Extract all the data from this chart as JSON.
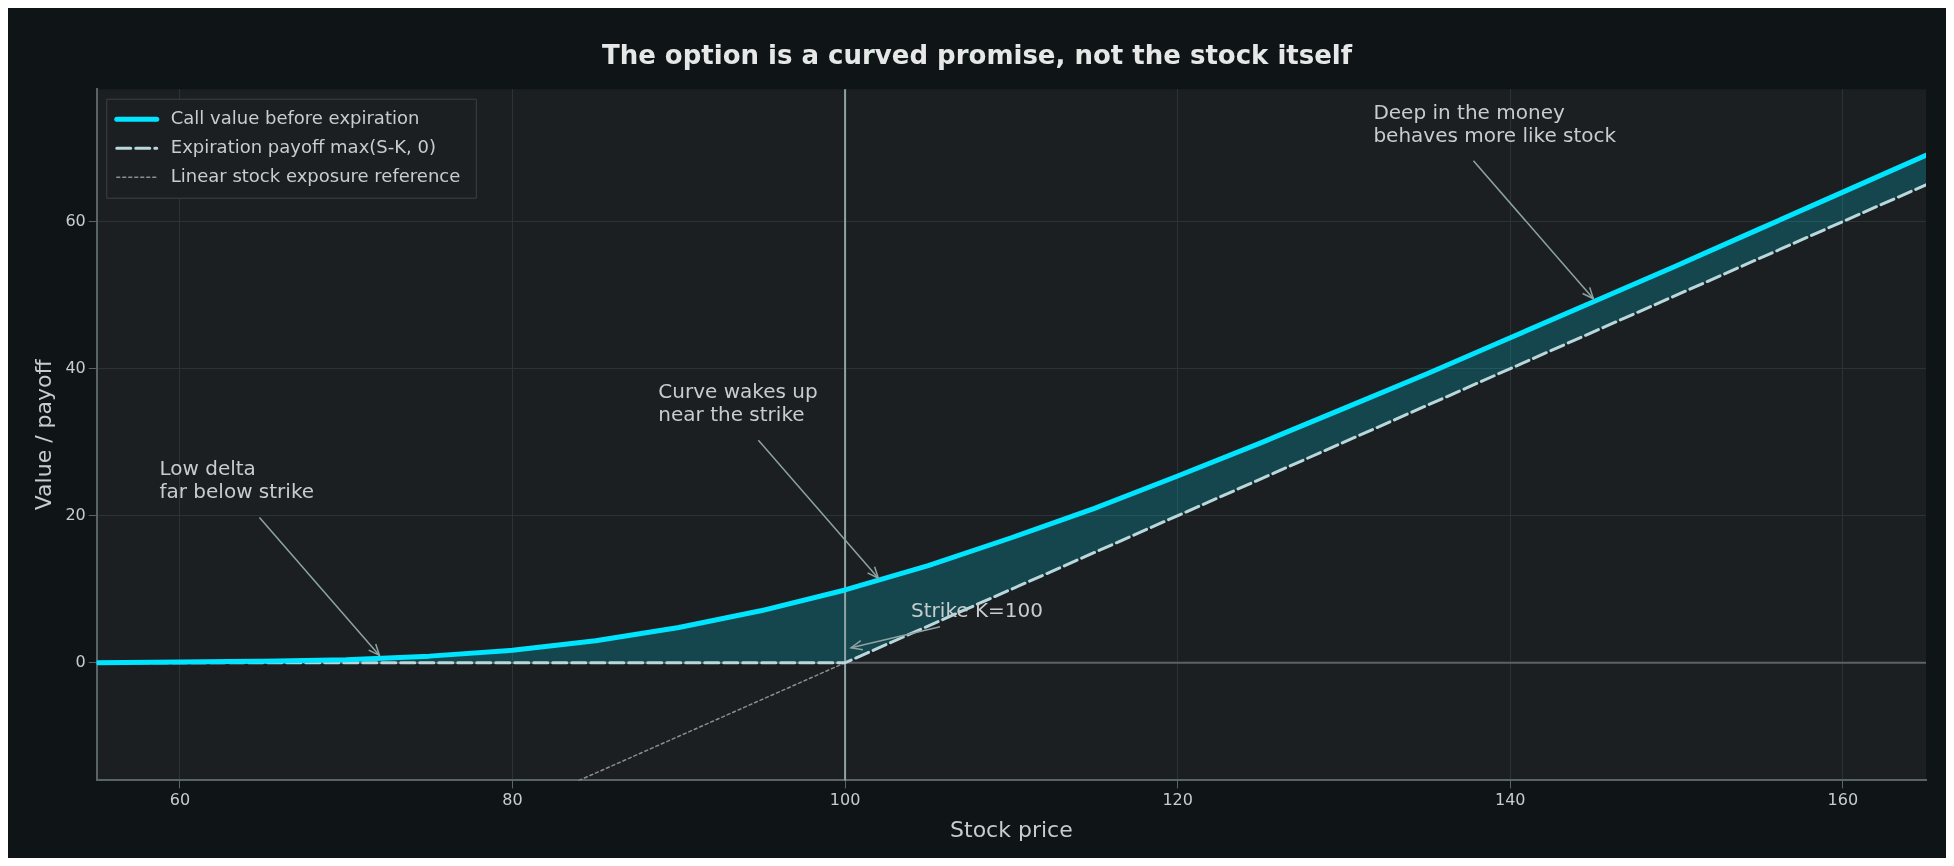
{
  "chart_data": {
    "type": "line",
    "title": "The option is a curved promise, not the stock itself",
    "xlabel": "Stock price",
    "ylabel": "Value / payoff",
    "xlim": [
      55,
      165
    ],
    "xticks": [
      60,
      80,
      100,
      120,
      140,
      160
    ],
    "ylim": [
      -16,
      78
    ],
    "yticks": [
      0,
      20,
      40,
      60
    ],
    "grid": true,
    "legend": "top left",
    "series": [
      {
        "name": "Call value before expiration",
        "color": "#00e5ff",
        "line_style": "solid",
        "x": [
          55,
          60,
          65,
          70,
          75,
          80,
          85,
          90,
          95,
          100,
          105,
          110,
          115,
          120,
          125,
          130,
          135,
          140,
          145,
          150,
          155,
          160,
          165
        ],
        "values": [
          0.0,
          0.1,
          0.2,
          0.4,
          0.9,
          1.7,
          3.0,
          4.8,
          7.1,
          9.9,
          13.2,
          17.0,
          21.0,
          25.4,
          29.9,
          34.6,
          39.3,
          44.2,
          49.1,
          54.0,
          59.0,
          64.0,
          69.0
        ],
        "lower": [
          0,
          0,
          0,
          0,
          0,
          0,
          0,
          0,
          0,
          0,
          5,
          10,
          15,
          20,
          25,
          30,
          35,
          40,
          45,
          50,
          55,
          60,
          65
        ],
        "upper": [
          0.0,
          0.1,
          0.2,
          0.4,
          0.9,
          1.7,
          3.0,
          4.8,
          7.1,
          9.9,
          13.2,
          17.0,
          21.0,
          25.4,
          29.9,
          34.6,
          39.3,
          44.2,
          49.1,
          54.0,
          59.0,
          64.0,
          69.0
        ]
      },
      {
        "name": "Expiration payoff max(S-K, 0)",
        "color": "#b8d8dc",
        "line_style": "dashed",
        "x": [
          55,
          100,
          165
        ],
        "values": [
          0,
          0,
          65
        ]
      },
      {
        "name": "Linear stock exposure reference",
        "color": "#8c8c8c",
        "line_style": "dotted",
        "x": [
          84,
          100
        ],
        "values": [
          -16,
          0
        ]
      }
    ],
    "ref_lines": [
      {
        "axis": "x",
        "value": 100,
        "label": "Strike K=100",
        "color": "#8fa3a3"
      },
      {
        "axis": "y",
        "value": 0,
        "color": "#5a6366"
      }
    ],
    "annotations": [
      {
        "text": "Low delta\nfar below strike",
        "x": 72,
        "y": 1
      },
      {
        "text": "Curve wakes up\nnear the strike",
        "x": 102,
        "y": 11.5
      },
      {
        "text": "Deep in the money\nbehaves more like stock",
        "x": 145,
        "y": 49.5
      }
    ]
  }
}
